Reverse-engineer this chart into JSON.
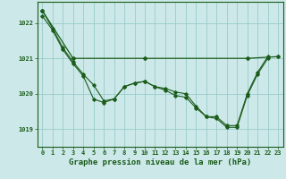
{
  "background_color": "#cce8e8",
  "grid_color": "#99cccc",
  "line_color": "#1a5c1a",
  "xlabel": "Graphe pression niveau de la mer (hPa)",
  "xlabel_fontsize": 6.5,
  "tick_fontsize": 5.0,
  "tick_label_color": "#1a5c1a",
  "ylim": [
    1018.5,
    1022.6
  ],
  "xlim": [
    -0.5,
    23.5
  ],
  "yticks": [
    1019,
    1020,
    1021,
    1022
  ],
  "xticks": [
    0,
    1,
    2,
    3,
    4,
    5,
    6,
    7,
    8,
    9,
    10,
    11,
    12,
    13,
    14,
    15,
    16,
    17,
    18,
    19,
    20,
    21,
    22,
    23
  ],
  "series1": [
    1022.35,
    1021.85,
    1021.3,
    1020.9,
    1020.55,
    1020.25,
    1019.8,
    1019.85,
    1020.2,
    1020.3,
    1020.35,
    1020.2,
    1020.15,
    1020.05,
    1020.0,
    1019.65,
    1019.35,
    1019.35,
    1019.1,
    1019.1,
    1020.0,
    1020.6,
    1021.05,
    null
  ],
  "series2": [
    1022.2,
    1021.8,
    1021.25,
    1020.85,
    1020.5,
    1019.85,
    1019.75,
    1019.85,
    1020.2,
    1020.3,
    1020.35,
    1020.2,
    1020.1,
    1019.95,
    1019.9,
    1019.6,
    1019.35,
    1019.3,
    1019.05,
    1019.05,
    1019.95,
    1020.55,
    1021.0,
    null
  ],
  "series3_points": [
    [
      0,
      1022.35
    ],
    [
      3,
      1021.0
    ],
    [
      10,
      1021.0
    ],
    [
      20,
      1021.0
    ],
    [
      23,
      1021.05
    ]
  ]
}
